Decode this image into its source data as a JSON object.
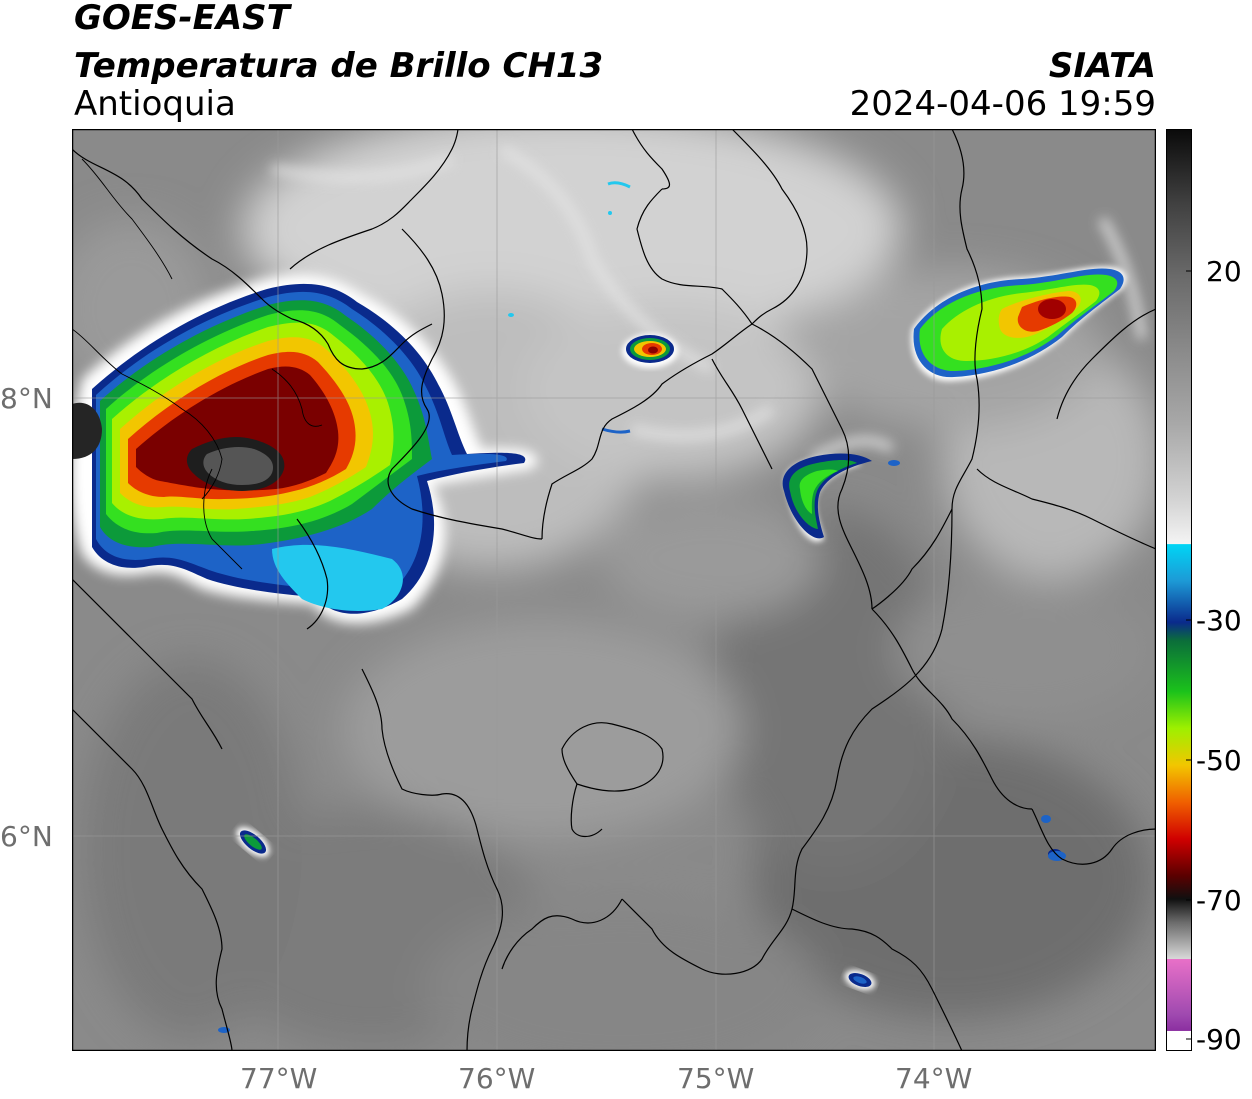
{
  "header": {
    "satellite": "GOES-EAST",
    "product": "Temperatura de Brillo CH13",
    "region": "Antioquia",
    "agency": "SIATA",
    "datetime": "2024-04-06 19:59"
  },
  "map": {
    "lon_ticks": [
      "77°W",
      "76°W",
      "75°W",
      "74°W"
    ],
    "lat_ticks": [
      "8°N",
      "6°N"
    ],
    "lon_range": [
      -77.95,
      -73.0
    ],
    "lat_range": [
      4.95,
      9.2
    ]
  },
  "colorbar": {
    "tick_labels": [
      "20",
      "-30",
      "-50",
      "-70",
      "-90"
    ],
    "range": [
      -90,
      40
    ]
  }
}
